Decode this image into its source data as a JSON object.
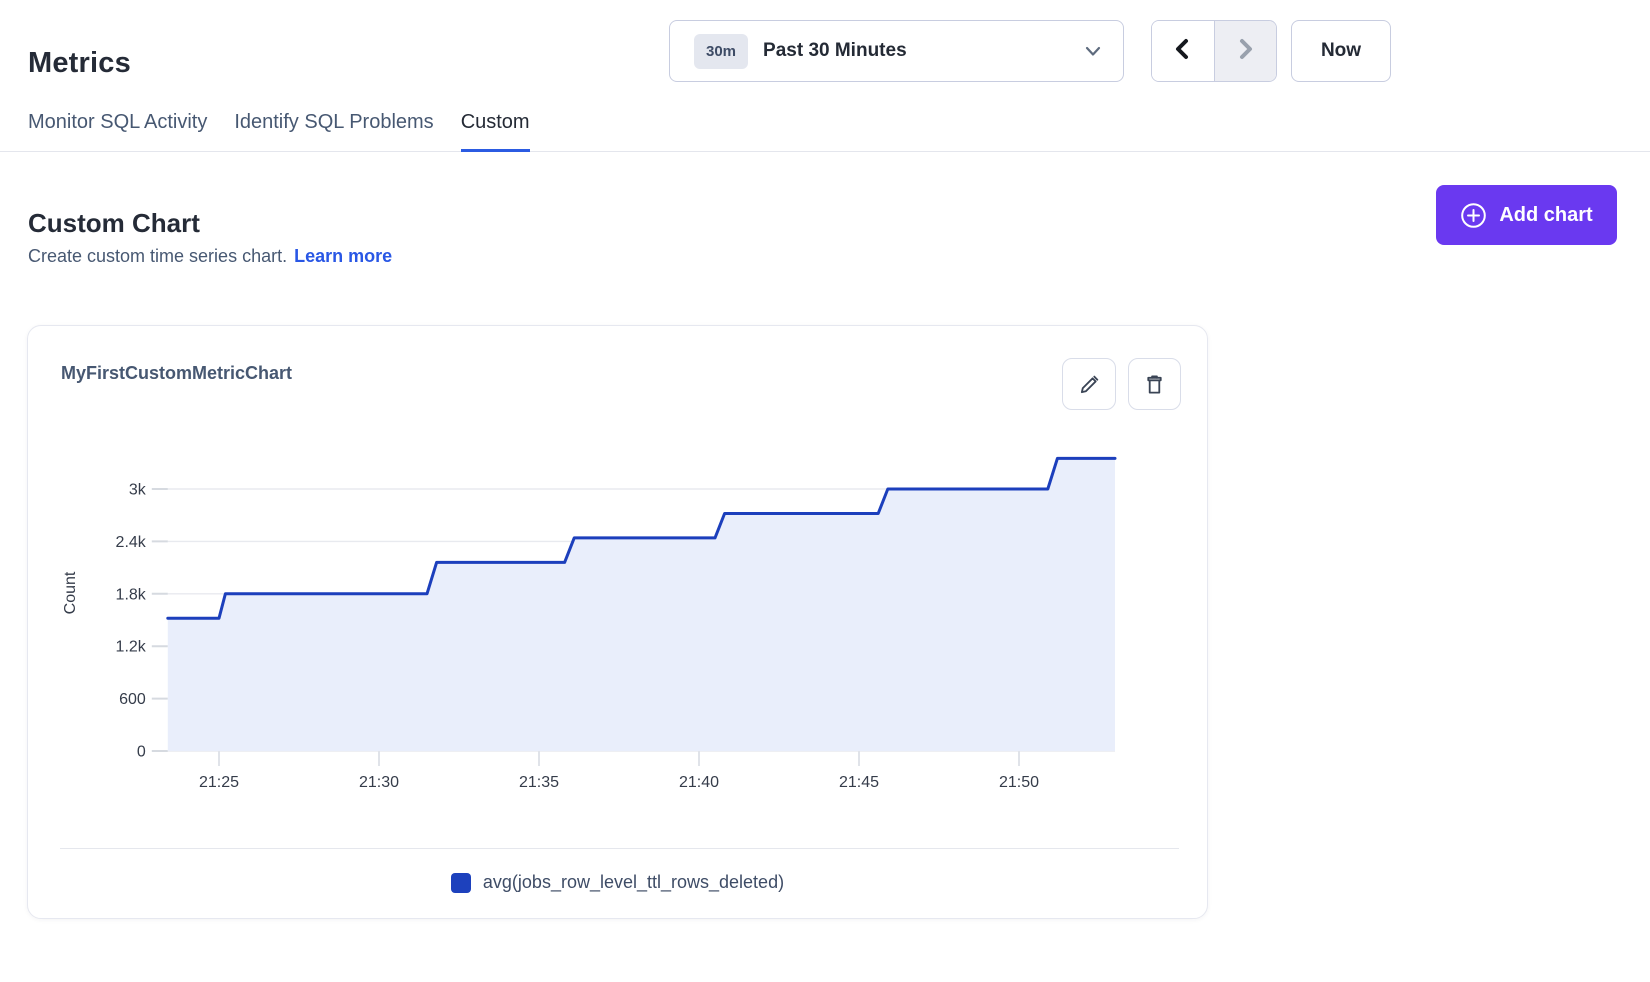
{
  "page": {
    "title": "Metrics"
  },
  "time_controls": {
    "range_badge": "30m",
    "range_label": "Past 30 Minutes",
    "now_label": "Now",
    "prev_enabled": true,
    "next_enabled": false
  },
  "tabs": [
    {
      "label": "Monitor SQL Activity",
      "active": false
    },
    {
      "label": "Identify SQL Problems",
      "active": false
    },
    {
      "label": "Custom",
      "active": true
    }
  ],
  "section": {
    "heading": "Custom Chart",
    "description": "Create custom time series chart.",
    "link_label": "Learn more",
    "add_button_label": "Add chart"
  },
  "card": {
    "title": "MyFirstCustomMetricChart"
  },
  "colors": {
    "accent_purple": "#6A39F0",
    "link_blue": "#2957E5",
    "tab_underline_blue": "#2B5BE2",
    "series_line_blue": "#1C3FBC",
    "series_fill_blue": "#E9EEFB",
    "legend_swatch_blue": "#1D41BD"
  },
  "chart_data": {
    "type": "area",
    "subtype": "step-line",
    "title": "MyFirstCustomMetricChart",
    "xlabel": "",
    "ylabel": "Count",
    "grid": true,
    "legend_position": "bottom-center",
    "x_axis": {
      "ticks": [
        "21:25",
        "21:30",
        "21:35",
        "21:40",
        "21:45",
        "21:50"
      ],
      "range": [
        "21:23.4",
        "21:53.0"
      ]
    },
    "y_axis": {
      "ticks": [
        0,
        600,
        1200,
        1800,
        2400,
        3000
      ],
      "tick_labels": [
        "0",
        "600",
        "1.2k",
        "1.8k",
        "2.4k",
        "3k"
      ],
      "range": [
        0,
        3600
      ]
    },
    "series": [
      {
        "name": "avg(jobs_row_level_ttl_rows_deleted)",
        "color": "#1C3FBC",
        "fill_color": "#E9EEFB",
        "points": [
          {
            "t": "21:23.4",
            "v": 1520
          },
          {
            "t": "21:25.0",
            "v": 1520
          },
          {
            "t": "21:25.2",
            "v": 1800
          },
          {
            "t": "21:31.5",
            "v": 1800
          },
          {
            "t": "21:31.8",
            "v": 2160
          },
          {
            "t": "21:35.8",
            "v": 2160
          },
          {
            "t": "21:36.1",
            "v": 2440
          },
          {
            "t": "21:40.5",
            "v": 2440
          },
          {
            "t": "21:40.8",
            "v": 2720
          },
          {
            "t": "21:45.6",
            "v": 2720
          },
          {
            "t": "21:45.9",
            "v": 3000
          },
          {
            "t": "21:50.9",
            "v": 3000
          },
          {
            "t": "21:51.2",
            "v": 3350
          },
          {
            "t": "21:53.0",
            "v": 3350
          }
        ]
      }
    ]
  }
}
